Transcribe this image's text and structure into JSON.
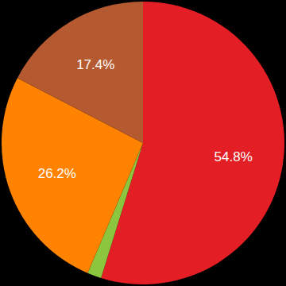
{
  "chart_data": {
    "type": "pie",
    "values": [
      54.8,
      1.6,
      26.2,
      17.4
    ],
    "value_labels": [
      "54.8%",
      null,
      "26.2%",
      "17.4%"
    ],
    "colors": [
      "#e31e24",
      "#8cc63f",
      "#ff8200",
      "#b55a30"
    ],
    "data_labels": true
  }
}
